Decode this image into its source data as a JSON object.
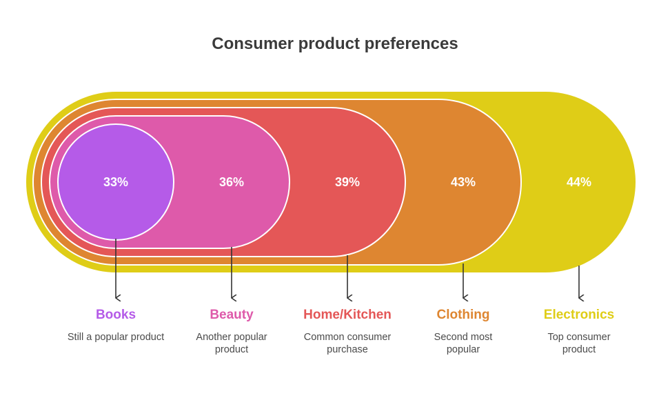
{
  "title": "Consumer product preferences",
  "items": [
    {
      "name": "Books",
      "percent": "33%",
      "description": "Still a popular product",
      "color": "#b55be8"
    },
    {
      "name": "Beauty",
      "percent": "36%",
      "description": "Another popular product",
      "color": "#de5aaa"
    },
    {
      "name": "Home/Kitchen",
      "percent": "39%",
      "description": "Common consumer purchase",
      "color": "#e45757"
    },
    {
      "name": "Clothing",
      "percent": "43%",
      "description": "Second most popular",
      "color": "#de8631"
    },
    {
      "name": "Electronics",
      "percent": "44%",
      "description": "Top consumer product",
      "color": "#dfcd17"
    }
  ]
}
